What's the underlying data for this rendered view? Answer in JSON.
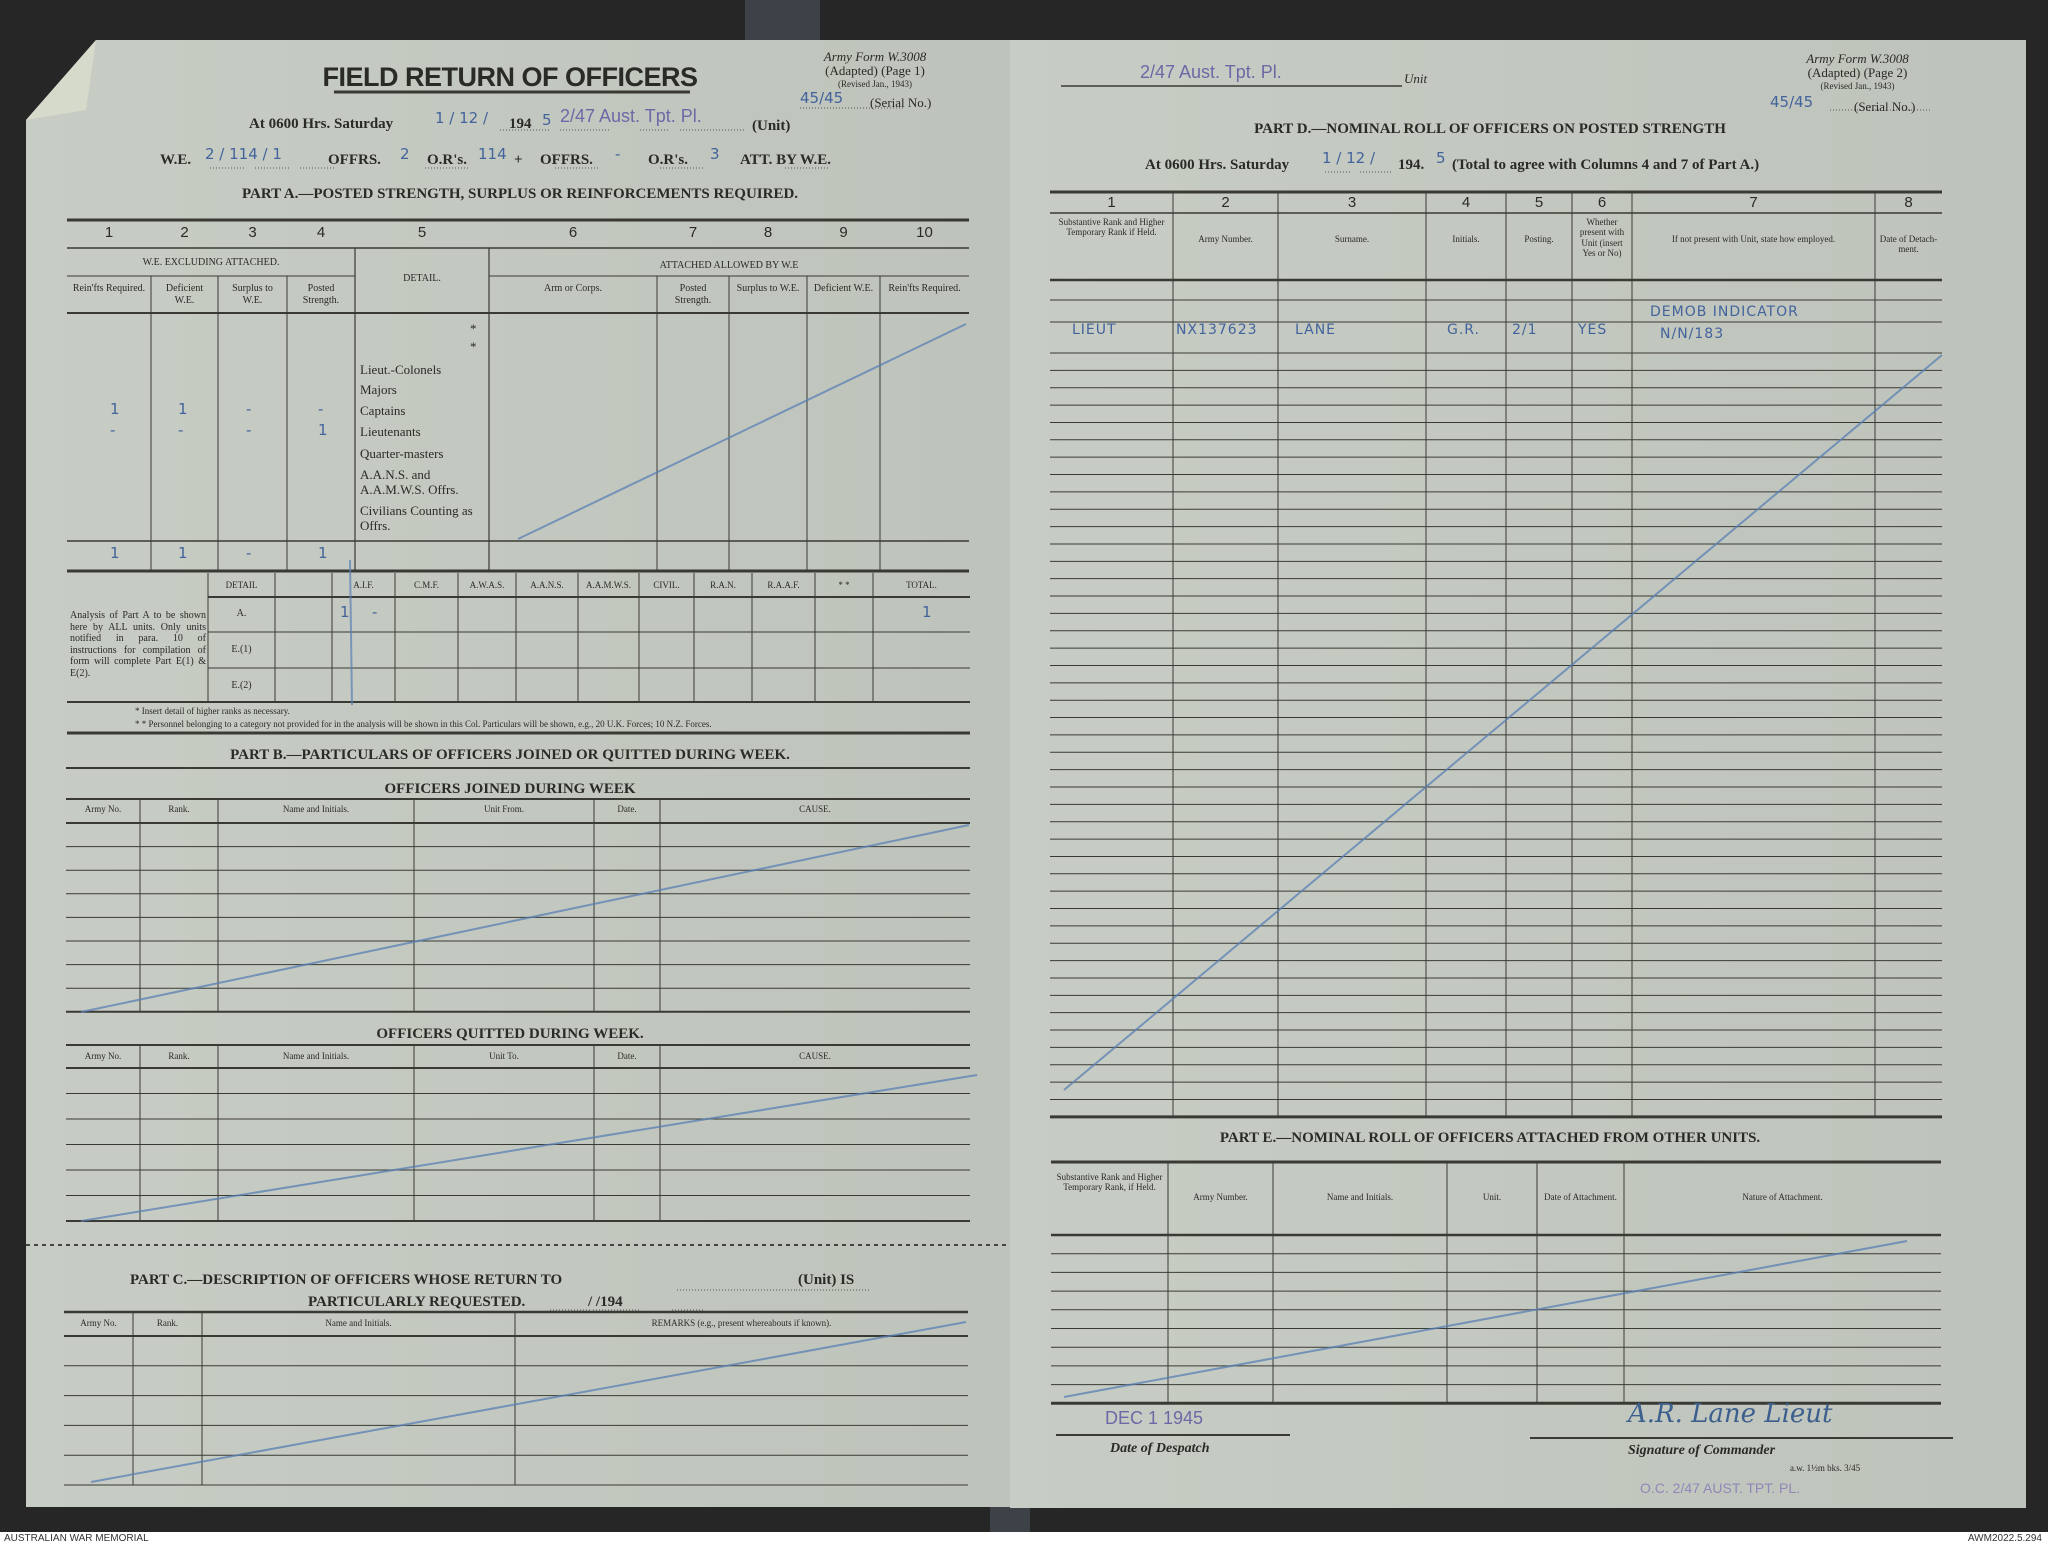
{
  "colors": {
    "paper": "#c4cac1",
    "ink": "#2a2a26",
    "handwriting": "#43639c",
    "stamp": "#6d68a6",
    "blue_pencil": "#5a7fb5"
  },
  "left_page": {
    "form_id": {
      "line1": "Army Form W.3008",
      "line2": "(Adapted) (Page 1)",
      "line3": "(Revised Jan., 1943)"
    },
    "title": "FIELD RETURN OF OFFICERS",
    "serial": {
      "value": "45/45",
      "label": "(Serial No.)"
    },
    "at_line": {
      "prefix": "At 0600 Hrs. Saturday",
      "date_hand": "1 / 12 /",
      "year_print": "194",
      "year_hand": "5",
      "unit_stamp": "2/47 Aust. Tpt. Pl.",
      "unit_label": "(Unit)"
    },
    "we_line": {
      "we_label": "W.E.",
      "we_value": "2 / 114 / 1",
      "offrs1_label": "OFFRS.",
      "offrs1_value": "2",
      "ors1_label": "O.R's.",
      "ors1_value": "114",
      "plus": "+",
      "offrs2_label": "OFFRS.",
      "offrs2_value": "-",
      "ors2_label": "O.R's.",
      "ors2_value": "3",
      "att_label": "ATT. BY W.E."
    },
    "part_a": {
      "heading": "PART A.—POSTED STRENGTH, SURPLUS OR REINFORCEMENTS REQUIRED.",
      "col_numbers": [
        "1",
        "2",
        "3",
        "4",
        "5",
        "6",
        "7",
        "8",
        "9",
        "10"
      ],
      "group_we": "W.E. EXCLUDING ATTACHED.",
      "group_att": "ATTACHED ALLOWED BY W.E",
      "detail_header": "DETAIL.",
      "subheaders": [
        "Rein'fts Required.",
        "Deficient W.E.",
        "Surplus to W.E.",
        "Posted Strength.",
        "Arm or Corps.",
        "Posted Strength.",
        "Surplus to W.E.",
        "Deficient W.E.",
        "Rein'fts Required."
      ],
      "details": [
        "*",
        "*",
        "Lieut.-Colonels",
        "Majors",
        "Captains",
        "Lieutenants",
        "Quarter-masters",
        "A.A.N.S. and A.A.M.W.S. Offrs.",
        "Civilians Counting as Offrs."
      ],
      "entries": {
        "captains": [
          "1",
          "1",
          "-",
          "-"
        ],
        "lieutenants": [
          "-",
          "-",
          "-",
          "1"
        ],
        "totals": [
          "1",
          "1",
          "-",
          "1"
        ]
      }
    },
    "analysis": {
      "note": "Analysis of Part A to be shown here by ALL units. Only units notified in para. 10 of instructions for compilation of form will complete Part E(1) & E(2).",
      "columns": [
        "DETAIL",
        "",
        "A.I.F.",
        "C.M.F.",
        "A.W.A.S.",
        "A.A.N.S.",
        "A.A.M.W.S.",
        "CIVIL.",
        "R.A.N.",
        "R.A.A.F.",
        "* *",
        "TOTAL."
      ],
      "rows": [
        "A.",
        "E.(1)",
        "E.(2)"
      ],
      "row_a": {
        "aif": "1",
        "cmf": "-",
        "total": "1"
      },
      "footnotes": [
        "* Insert detail of higher ranks as necessary.",
        "* * Personnel belonging to a category not provided for in the analysis will be shown in this Col.  Particulars will be shown, e.g., 20 U.K. Forces; 10 N.Z. Forces."
      ]
    },
    "part_b": {
      "heading": "PART B.—PARTICULARS OF OFFICERS JOINED OR QUITTED DURING WEEK.",
      "joined_title": "OFFICERS JOINED DURING WEEK",
      "joined_columns": [
        "Army No.",
        "Rank.",
        "Name and Initials.",
        "Unit From.",
        "Date.",
        "CAUSE."
      ],
      "quitted_title": "OFFICERS QUITTED DURING WEEK.",
      "quitted_columns": [
        "Army No.",
        "Rank.",
        "Name and Initials.",
        "Unit To.",
        "Date.",
        "CAUSE."
      ]
    },
    "part_c": {
      "line1": "PART C.—DESCRIPTION OF OFFICERS WHOSE RETURN TO",
      "unit_suffix": "(Unit) IS",
      "line2": "PARTICULARLY REQUESTED.",
      "date_blank": "/          /194",
      "columns": [
        "Army No.",
        "Rank.",
        "Name and Initials.",
        "REMARKS (e.g., present whereabouts if known)."
      ]
    }
  },
  "right_page": {
    "unit_value": "2/47 Aust. Tpt. Pl.",
    "unit_label": "Unit",
    "form_id": {
      "line1": "Army Form W.3008",
      "line2": "(Adapted) (Page 2)",
      "line3": "(Revised Jan., 1943)"
    },
    "serial": {
      "value": "45/45",
      "label": "(Serial No.)"
    },
    "part_d": {
      "heading": "PART D.—NOMINAL ROLL OF OFFICERS ON POSTED STRENGTH",
      "at_prefix": "At 0600 Hrs. Saturday",
      "date_hand": "1 / 12 /",
      "year_print": "194.",
      "year_hand": "5",
      "at_suffix": "(Total to agree with Columns 4 and 7 of Part A.)",
      "col_numbers": [
        "1",
        "2",
        "3",
        "4",
        "5",
        "6",
        "7",
        "8"
      ],
      "columns": [
        "Substantive Rank and Higher Temporary Rank if Held.",
        "Army Number.",
        "Surname.",
        "Initials.",
        "Posting.",
        "Whether present with Unit (insert Yes or No)",
        "If not present with Unit, state how employed.",
        "Date of Detach-ment."
      ],
      "entry": {
        "rank": "LIEUT",
        "army_number": "NX137623",
        "surname": "LANE",
        "initials": "G.R.",
        "posting": "2/1",
        "present": "YES",
        "employed_line1": "DEMOB INDICATOR",
        "employed_line2": "N/N/183"
      }
    },
    "part_e": {
      "heading": "PART E.—NOMINAL ROLL OF OFFICERS ATTACHED FROM OTHER UNITS.",
      "columns": [
        "Substantive Rank and Higher Temporary Rank, if Held.",
        "Army Number.",
        "Name and Initials.",
        "Unit.",
        "Date of Attachment.",
        "Nature of Attachment."
      ]
    },
    "footer": {
      "date_stamp": "DEC 1 1945",
      "date_label": "Date of Despatch",
      "signature": "A.R. Lane Lieut",
      "signature_label": "Signature of Commander",
      "oc_stamp": "O.C. 2/47 AUST. TPT. PL.",
      "print_code": "a.w. 1½m bks. 3/45"
    }
  },
  "caption": {
    "left": "AUSTRALIAN WAR MEMORIAL",
    "right": "AWM2022.5.294"
  }
}
